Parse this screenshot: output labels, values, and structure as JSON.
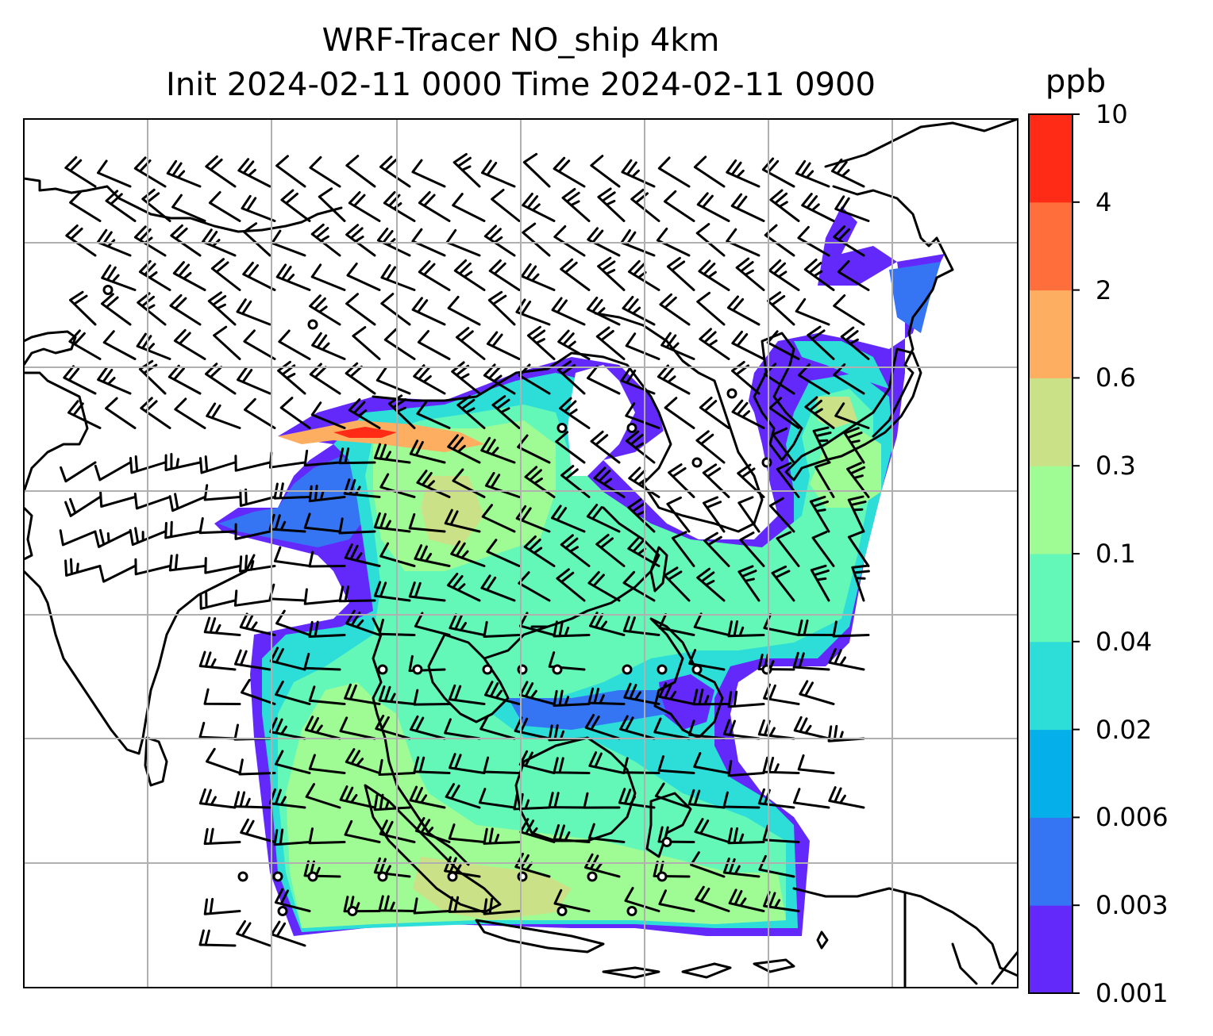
{
  "title": {
    "line1": "WRF-Tracer NO_ship 4km",
    "line2": "Init 2024-02-11 0000 Time 2024-02-11 0900"
  },
  "colorbar": {
    "unit": "ppb",
    "levels": [
      "0.001",
      "0.003",
      "0.006",
      "0.02",
      "0.04",
      "0.1",
      "0.3",
      "0.6",
      "2",
      "4",
      "10"
    ],
    "colors": [
      "#6329fb",
      "#3574f3",
      "#05b0ea",
      "#2dddd8",
      "#63f7b8",
      "#9ffb94",
      "#cbe187",
      "#fdae61",
      "#ff6e3b",
      "#ff2b16"
    ]
  },
  "map": {
    "field_colors": {
      "cyan": "#2dddd8",
      "teal": "#63f7b8",
      "green": "#9ffb94",
      "olive": "#cbe187",
      "orange": "#fdae61",
      "red": "#ff2b16",
      "blue": "#3574f3",
      "purple": "#6329fb"
    }
  }
}
